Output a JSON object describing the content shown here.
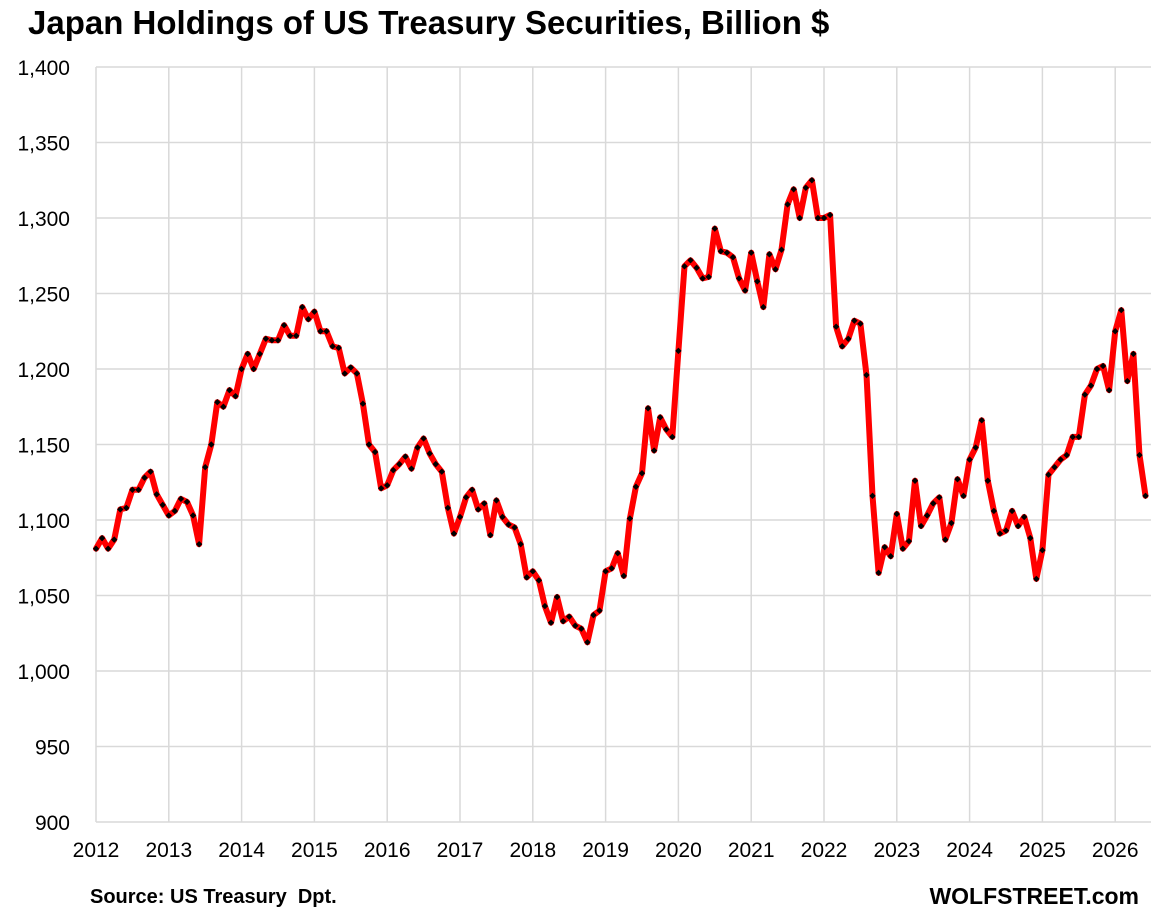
{
  "source": "Source: US Treasury  Dpt.",
  "brand": "WOLFSTREET.com",
  "colors": {
    "line": "#ff0000",
    "marker": "#000000",
    "grid": "#d9d9d9"
  },
  "chart_data": {
    "type": "line",
    "title": "Japan Holdings of US Treasury Securities, Billion $",
    "xlabel": "",
    "ylabel": "",
    "ylim": [
      900,
      1400
    ],
    "y_ticks": [
      900,
      950,
      1000,
      1050,
      1100,
      1150,
      1200,
      1250,
      1300,
      1350,
      1400
    ],
    "y_tick_labels": [
      "900",
      "950",
      "1,000",
      "1,050",
      "1,100",
      "1,150",
      "1,200",
      "1,250",
      "1,300",
      "1,350",
      "1,400"
    ],
    "x_tick_labels": [
      "2012",
      "2013",
      "2014",
      "2015",
      "2016",
      "2017",
      "2018",
      "2019",
      "2020",
      "2021",
      "2022",
      "2023",
      "2024",
      "2025",
      "2026"
    ],
    "grid": true,
    "legend": "none",
    "x_start": "2012-01",
    "frequency": "monthly",
    "series": [
      {
        "values": [
          1081,
          1088,
          1081,
          1087,
          1107,
          1108,
          1120,
          1120,
          1128,
          1132,
          1117,
          1110,
          1103,
          1106,
          1114,
          1112,
          1103,
          1084,
          1135,
          1150,
          1178,
          1175,
          1186,
          1182,
          1200,
          1210,
          1200,
          1210,
          1220,
          1219,
          1219,
          1229,
          1222,
          1222,
          1241,
          1233,
          1238,
          1225,
          1225,
          1215,
          1214,
          1197,
          1201,
          1197,
          1177,
          1150,
          1145,
          1121,
          1123,
          1133,
          1137,
          1142,
          1134,
          1148,
          1154,
          1144,
          1137,
          1132,
          1108,
          1091,
          1102,
          1115,
          1120,
          1107,
          1111,
          1090,
          1113,
          1102,
          1097,
          1095,
          1084,
          1062,
          1066,
          1060,
          1043,
          1032,
          1049,
          1033,
          1036,
          1030,
          1028,
          1019,
          1037,
          1040,
          1066,
          1068,
          1078,
          1063,
          1101,
          1122,
          1131,
          1174,
          1146,
          1168,
          1160,
          1155,
          1212,
          1268,
          1272,
          1267,
          1260,
          1261,
          1293,
          1278,
          1277,
          1274,
          1260,
          1252,
          1277,
          1258,
          1241,
          1276,
          1266,
          1279,
          1309,
          1319,
          1300,
          1320,
          1325,
          1300,
          1300,
          1302,
          1228,
          1215,
          1220,
          1232,
          1230,
          1196,
          1116,
          1065,
          1082,
          1076,
          1104,
          1081,
          1086,
          1126,
          1096,
          1103,
          1111,
          1115,
          1087,
          1098,
          1127,
          1116,
          1140,
          1148,
          1166,
          1126,
          1106,
          1091,
          1093,
          1106,
          1096,
          1102,
          1088,
          1061,
          1080,
          1130,
          1135,
          1140,
          1143,
          1155,
          1155,
          1183,
          1189,
          1200,
          1202,
          1186,
          1225,
          1239,
          1192,
          1210,
          1143,
          1116
        ]
      }
    ]
  }
}
